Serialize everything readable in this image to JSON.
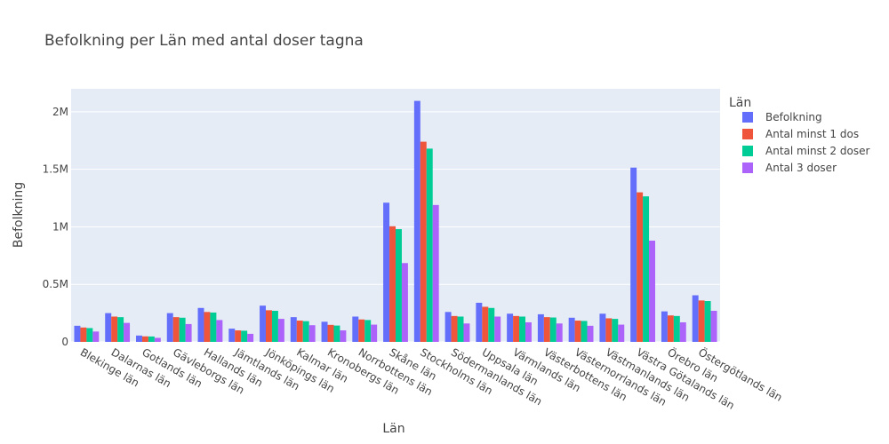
{
  "chart_data": {
    "type": "bar",
    "title": "Befolkning per Län med antal doser tagna",
    "xlabel": "Län",
    "ylabel": "Befolkning",
    "ylim": [
      0,
      2200000
    ],
    "yticks": [
      0,
      500000,
      1000000,
      1500000,
      2000000
    ],
    "ytick_labels": [
      "0",
      "0.5M",
      "1M",
      "1.5M",
      "2M"
    ],
    "grid": true,
    "legend_position": "top-right",
    "legend_title": "Län",
    "categories": [
      "Blekinge län",
      "Dalarnas län",
      "Gotlands län",
      "Gävleborgs län",
      "Hallands län",
      "Jämtlands län",
      "Jönköpings län",
      "Kalmar län",
      "Kronobergs län",
      "Norrbottens län",
      "Skåne län",
      "Stockholms län",
      "Södermanlands län",
      "Uppsala län",
      "Värmlands län",
      "Västerbottens län",
      "Västernorrlands län",
      "Västmanlands län",
      "Västra Götalands län",
      "Örebro län",
      "Östergötlands län"
    ],
    "series": [
      {
        "name": "Befolkning",
        "color": "#636efa",
        "values": [
          140000,
          250000,
          55000,
          250000,
          295000,
          115000,
          315000,
          215000,
          175000,
          220000,
          1210000,
          2095000,
          260000,
          340000,
          245000,
          240000,
          210000,
          245000,
          1515000,
          265000,
          405000
        ]
      },
      {
        "name": "Antal minst 1 dos",
        "color": "#ef553b",
        "values": [
          125000,
          220000,
          48000,
          215000,
          260000,
          100000,
          275000,
          185000,
          148000,
          195000,
          1005000,
          1740000,
          225000,
          305000,
          225000,
          215000,
          185000,
          205000,
          1300000,
          230000,
          360000
        ]
      },
      {
        "name": "Antal minst 2 doser",
        "color": "#00cc96",
        "values": [
          120000,
          215000,
          47000,
          210000,
          255000,
          97000,
          270000,
          180000,
          142000,
          190000,
          980000,
          1680000,
          220000,
          295000,
          220000,
          212000,
          182000,
          200000,
          1265000,
          225000,
          355000
        ]
      },
      {
        "name": "Antal 3 doser",
        "color": "#ab63fa",
        "values": [
          90000,
          165000,
          35000,
          155000,
          190000,
          70000,
          200000,
          145000,
          100000,
          150000,
          685000,
          1190000,
          160000,
          220000,
          170000,
          160000,
          140000,
          150000,
          880000,
          170000,
          270000
        ]
      }
    ]
  }
}
